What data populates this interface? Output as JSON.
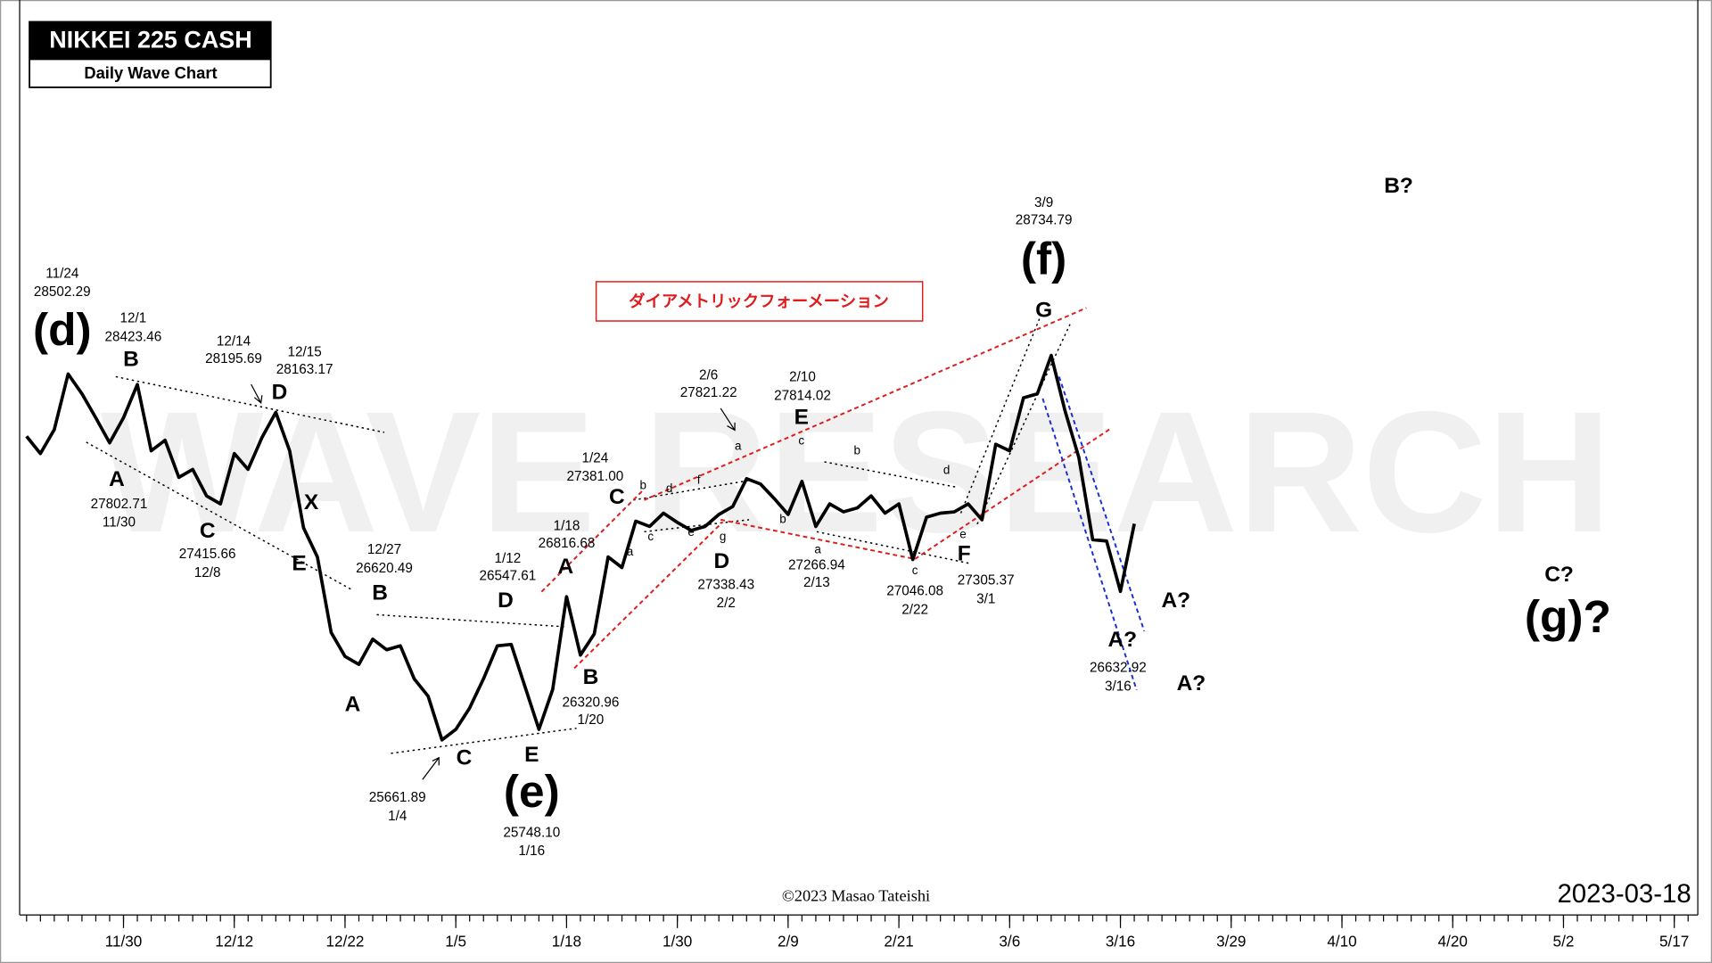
{
  "chart_data": {
    "type": "line",
    "title": "NIKKEI 225 CASH",
    "subtitle": "Daily Wave Chart",
    "date": "2023-03-18",
    "copyright": "©2023 Masao Tateishi",
    "watermark": "WAVE RESEARCH",
    "note": "ダイアメトリックフォーメーション",
    "xlim": [
      0.5,
      121.7
    ],
    "xticks": [
      {
        "value": 8,
        "label": "11/30"
      },
      {
        "value": 16,
        "label": "12/12"
      },
      {
        "value": 24,
        "label": "12/22"
      },
      {
        "value": 32,
        "label": "1/5"
      },
      {
        "value": 40,
        "label": "1/18"
      },
      {
        "value": 48,
        "label": "1/30"
      },
      {
        "value": 56,
        "label": "2/9"
      },
      {
        "value": 64,
        "label": "2/21"
      },
      {
        "value": 72,
        "label": "3/6"
      },
      {
        "value": 80,
        "label": "3/16"
      },
      {
        "value": 88,
        "label": "3/29"
      },
      {
        "value": 96,
        "label": "4/10"
      },
      {
        "value": 104,
        "label": "4/20"
      },
      {
        "value": 112,
        "label": "5/2"
      },
      {
        "value": 120,
        "label": "5/17"
      }
    ],
    "ylim": [
      24400,
      31300
    ],
    "x": [
      1,
      2,
      3,
      4,
      5,
      6,
      7,
      8,
      9,
      10,
      11,
      12,
      13,
      14,
      15,
      16,
      17,
      18,
      19,
      20,
      21,
      22,
      23,
      24,
      25,
      26,
      27,
      28,
      29,
      30,
      31,
      32,
      33,
      34,
      35,
      36,
      37,
      38,
      39,
      40,
      41,
      42,
      43,
      44,
      45,
      46,
      47,
      48,
      49,
      50,
      51,
      52,
      53,
      54,
      55,
      56,
      57,
      58,
      59,
      60,
      61,
      62,
      63,
      64,
      65,
      66,
      67,
      68,
      69,
      70,
      71,
      72,
      73,
      74,
      75,
      76,
      77,
      78,
      79,
      80,
      81
    ],
    "series": [
      {
        "name": "NIKKEI 225",
        "color": "#000000",
        "values": [
          28010,
          27880,
          28060,
          28480,
          28330,
          28150,
          27960,
          28150,
          28400,
          27900,
          27980,
          27700,
          27760,
          27560,
          27500,
          27880,
          27760,
          28000,
          28190,
          27900,
          27320,
          27100,
          26530,
          26350,
          26290,
          26480,
          26400,
          26430,
          26180,
          26050,
          25720,
          25800,
          25960,
          26180,
          26430,
          26440,
          26120,
          25800,
          26100,
          26800,
          26360,
          26520,
          27100,
          27020,
          27370,
          27330,
          27430,
          27360,
          27300,
          27330,
          27420,
          27480,
          27690,
          27650,
          27540,
          27420,
          27670,
          27330,
          27500,
          27440,
          27470,
          27560,
          27430,
          27500,
          27080,
          27400,
          27430,
          27440,
          27500,
          27380,
          27950,
          27900,
          28300,
          28330,
          28620,
          28200,
          27850,
          27230,
          27220,
          26840,
          27350
        ]
      }
    ],
    "annotations": [
      "(d)",
      "(e)",
      "(f)",
      "(g)?",
      "B",
      "A",
      "C",
      "D",
      "X",
      "E",
      "B",
      "A",
      "C",
      "D",
      "E",
      "A",
      "B",
      "C",
      "D",
      "E",
      "F",
      "G",
      "A?",
      "A?",
      "A?",
      "B?",
      "C?",
      "11/24",
      "28502.29",
      "12/1",
      "28423.46",
      "12/14",
      "28195.69",
      "12/15",
      "28163.17",
      "27802.71",
      "11/30",
      "27415.66",
      "12/8",
      "12/27",
      "26620.49",
      "1/12",
      "26547.61",
      "1/18",
      "26816.68",
      "1/24",
      "27381.00",
      "2/6",
      "27821.22",
      "2/10",
      "27814.02",
      "3/9",
      "28734.79",
      "27338.43",
      "2/2",
      "27266.94",
      "2/13",
      "27046.08",
      "2/22",
      "27305.37",
      "3/1",
      "26632.92",
      "3/16",
      "26320.96",
      "1/20",
      "25661.89",
      "1/4",
      "25748.10",
      "1/16",
      "b",
      "c",
      "d",
      "e",
      "f",
      "g",
      "a",
      "c",
      "b",
      "a",
      "b",
      "c",
      "d",
      "e",
      "a"
    ]
  }
}
